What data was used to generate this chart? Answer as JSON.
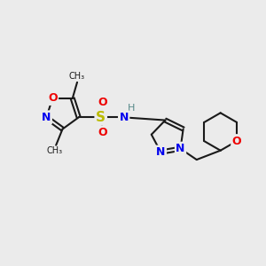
{
  "background_color": "#ebebeb",
  "bond_color": "#1a1a1a",
  "bond_width": 1.5,
  "atom_colors": {
    "N": "#0000ee",
    "O": "#ee0000",
    "S": "#bbbb00",
    "H": "#558888",
    "C": "#1a1a1a"
  },
  "font_size_atom": 9,
  "fig_size": [
    3.0,
    3.0
  ],
  "dpi": 100
}
